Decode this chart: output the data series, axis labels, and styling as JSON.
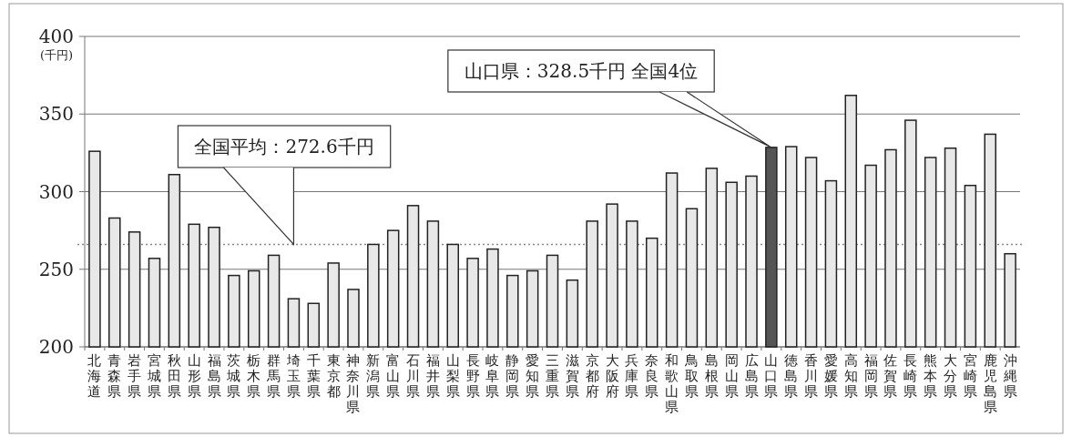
{
  "chart_data": {
    "type": "bar",
    "ylabel": "(千円)",
    "categories": [
      "北海道",
      "青森県",
      "岩手県",
      "宮城県",
      "秋田県",
      "山形県",
      "福島県",
      "茨城県",
      "栃木県",
      "群馬県",
      "埼玉県",
      "千葉県",
      "東京都",
      "神奈川県",
      "新潟県",
      "富山県",
      "石川県",
      "福井県",
      "山梨県",
      "長野県",
      "岐阜県",
      "静岡県",
      "愛知県",
      "三重県",
      "滋賀県",
      "京都府",
      "大阪府",
      "兵庫県",
      "奈良県",
      "和歌山県",
      "鳥取県",
      "島根県",
      "岡山県",
      "広島県",
      "山口県",
      "徳島県",
      "香川県",
      "愛媛県",
      "高知県",
      "福岡県",
      "佐賀県",
      "長崎県",
      "熊本県",
      "大分県",
      "宮崎県",
      "鹿児島県",
      "沖縄県"
    ],
    "values": [
      326,
      283,
      274,
      257,
      311,
      279,
      277,
      246,
      249,
      259,
      231,
      228,
      254,
      237,
      266,
      275,
      291,
      281,
      266,
      257,
      263,
      246,
      249,
      259,
      243,
      281,
      292,
      281,
      270,
      312,
      289,
      315,
      306,
      310,
      328.5,
      329,
      322,
      307,
      362,
      317,
      327,
      346,
      322,
      328,
      304,
      337,
      260
    ],
    "colors": [
      "#e8e8e8",
      "#e8e8e8",
      "#e8e8e8",
      "#e8e8e8",
      "#e8e8e8",
      "#e8e8e8",
      "#e8e8e8",
      "#e8e8e8",
      "#e8e8e8",
      "#e8e8e8",
      "#e8e8e8",
      "#e8e8e8",
      "#e8e8e8",
      "#e8e8e8",
      "#e8e8e8",
      "#e8e8e8",
      "#e8e8e8",
      "#e8e8e8",
      "#e8e8e8",
      "#e8e8e8",
      "#e8e8e8",
      "#e8e8e8",
      "#e8e8e8",
      "#e8e8e8",
      "#e8e8e8",
      "#e8e8e8",
      "#e8e8e8",
      "#e8e8e8",
      "#e8e8e8",
      "#e8e8e8",
      "#e8e8e8",
      "#e8e8e8",
      "#e8e8e8",
      "#e8e8e8",
      "#555555",
      "#e8e8e8",
      "#e8e8e8",
      "#e8e8e8",
      "#e8e8e8",
      "#e8e8e8",
      "#e8e8e8",
      "#e8e8e8",
      "#e8e8e8",
      "#e8e8e8",
      "#e8e8e8",
      "#e8e8e8",
      "#e8e8e8"
    ],
    "ylim": [
      200,
      400
    ],
    "yticks": [
      200,
      250,
      300,
      350,
      400
    ],
    "grid": "y",
    "ref_lines": [
      {
        "axis": "y",
        "value": 266,
        "line_style": "dotted",
        "color": "#888888"
      }
    ],
    "annotations": [
      "全国平均：272.6千円",
      {
        "text": "山口県：328.5千円  全国4位",
        "x": "山口県",
        "y": 328.5
      }
    ]
  }
}
